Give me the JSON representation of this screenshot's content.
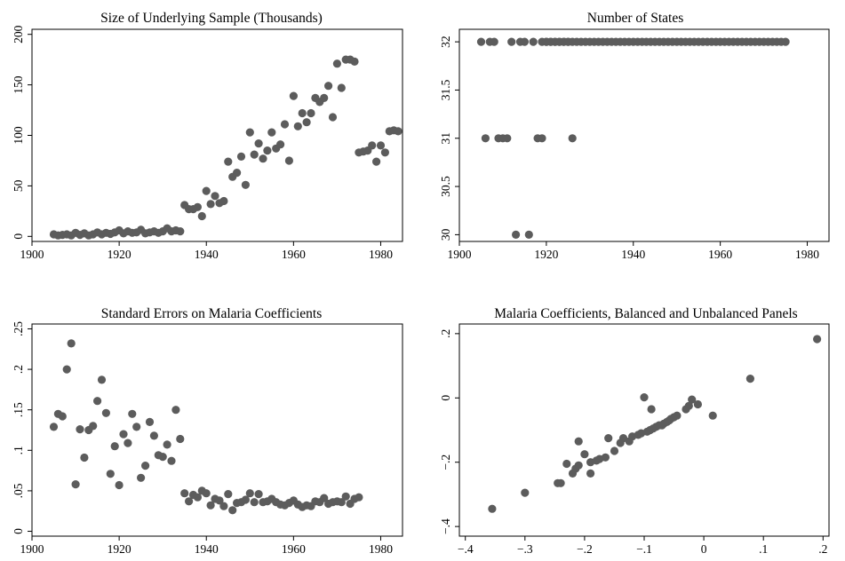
{
  "chart_data": [
    {
      "type": "scatter",
      "title": "Size of Underlying Sample (Thousands)",
      "xlim": [
        1900,
        1985
      ],
      "ylim": [
        -5,
        205
      ],
      "xticks": [
        1900,
        1920,
        1940,
        1960,
        1980
      ],
      "yticks": [
        0,
        50,
        100,
        150,
        200
      ],
      "ytick_labels": [
        "0",
        "50",
        "100",
        "150",
        "200"
      ],
      "ytick_rotated": true,
      "grid": false,
      "points": [
        [
          1905,
          2
        ],
        [
          1906,
          1
        ],
        [
          1907,
          1.5
        ],
        [
          1908,
          2
        ],
        [
          1909,
          1
        ],
        [
          1910,
          3.5
        ],
        [
          1911,
          1.5
        ],
        [
          1912,
          3
        ],
        [
          1913,
          1
        ],
        [
          1914,
          2
        ],
        [
          1915,
          4
        ],
        [
          1916,
          2
        ],
        [
          1917,
          3.5
        ],
        [
          1918,
          2.5
        ],
        [
          1919,
          4
        ],
        [
          1920,
          6
        ],
        [
          1921,
          3
        ],
        [
          1922,
          5
        ],
        [
          1923,
          3.5
        ],
        [
          1924,
          4
        ],
        [
          1925,
          6.5
        ],
        [
          1926,
          3
        ],
        [
          1927,
          4
        ],
        [
          1928,
          5
        ],
        [
          1929,
          3.5
        ],
        [
          1930,
          5
        ],
        [
          1931,
          8
        ],
        [
          1932,
          5
        ],
        [
          1933,
          6
        ],
        [
          1934,
          5
        ],
        [
          1935,
          31
        ],
        [
          1936,
          27
        ],
        [
          1937,
          27
        ],
        [
          1938,
          29
        ],
        [
          1939,
          20
        ],
        [
          1940,
          45
        ],
        [
          1941,
          32
        ],
        [
          1942,
          40
        ],
        [
          1943,
          33
        ],
        [
          1944,
          35
        ],
        [
          1945,
          74
        ],
        [
          1946,
          59
        ],
        [
          1947,
          63
        ],
        [
          1948,
          79
        ],
        [
          1949,
          51
        ],
        [
          1950,
          103
        ],
        [
          1951,
          81
        ],
        [
          1952,
          92
        ],
        [
          1953,
          77
        ],
        [
          1954,
          85
        ],
        [
          1955,
          103
        ],
        [
          1956,
          87
        ],
        [
          1957,
          91
        ],
        [
          1958,
          111
        ],
        [
          1959,
          75
        ],
        [
          1960,
          139
        ],
        [
          1961,
          109
        ],
        [
          1962,
          122
        ],
        [
          1963,
          113
        ],
        [
          1964,
          122
        ],
        [
          1965,
          137
        ],
        [
          1966,
          133
        ],
        [
          1967,
          137
        ],
        [
          1968,
          149
        ],
        [
          1969,
          118
        ],
        [
          1970,
          171
        ],
        [
          1971,
          147
        ],
        [
          1972,
          175
        ],
        [
          1973,
          175
        ],
        [
          1974,
          173
        ],
        [
          1975,
          83
        ],
        [
          1976,
          84
        ],
        [
          1977,
          85
        ],
        [
          1978,
          90
        ],
        [
          1979,
          74
        ],
        [
          1980,
          90
        ],
        [
          1981,
          83
        ],
        [
          1982,
          104
        ],
        [
          1983,
          105
        ],
        [
          1984,
          104
        ]
      ]
    },
    {
      "type": "scatter",
      "title": "Number of States",
      "xlim": [
        1900,
        1985
      ],
      "ylim": [
        29.93,
        32.13
      ],
      "xticks": [
        1900,
        1920,
        1940,
        1960,
        1980
      ],
      "yticks": [
        30,
        30.5,
        31,
        31.5,
        32
      ],
      "ytick_labels": [
        "30",
        "30.5",
        "31",
        "31.5",
        "32"
      ],
      "ytick_rotated": true,
      "grid": false,
      "x_range_at_32": [
        1919,
        1975
      ],
      "points": [
        [
          1905,
          32
        ],
        [
          1906,
          31
        ],
        [
          1907,
          32
        ],
        [
          1908,
          32
        ],
        [
          1909,
          31
        ],
        [
          1910,
          31
        ],
        [
          1911,
          31
        ],
        [
          1912,
          32
        ],
        [
          1913,
          30
        ],
        [
          1914,
          32
        ],
        [
          1915,
          32
        ],
        [
          1916,
          30
        ],
        [
          1917,
          32
        ],
        [
          1918,
          31
        ],
        [
          1919,
          31
        ],
        [
          1920,
          32
        ],
        [
          1921,
          32
        ],
        [
          1922,
          32
        ],
        [
          1923,
          32
        ],
        [
          1924,
          32
        ],
        [
          1925,
          32
        ],
        [
          1926,
          31
        ]
      ]
    },
    {
      "type": "scatter",
      "title": "Standard Errors on Malaria Coefficients",
      "xlim": [
        1900,
        1985
      ],
      "ylim": [
        -0.006,
        0.256
      ],
      "xticks": [
        1900,
        1920,
        1940,
        1960,
        1980
      ],
      "yticks": [
        0,
        0.05,
        0.1,
        0.15,
        0.2,
        0.25
      ],
      "ytick_labels": [
        "0",
        ".05",
        ".1",
        ".15",
        ".2",
        ".25"
      ],
      "ytick_rotated": true,
      "grid": false,
      "points": [
        [
          1905,
          0.129
        ],
        [
          1906,
          0.145
        ],
        [
          1907,
          0.142
        ],
        [
          1908,
          0.2
        ],
        [
          1909,
          0.232
        ],
        [
          1910,
          0.058
        ],
        [
          1911,
          0.126
        ],
        [
          1912,
          0.091
        ],
        [
          1913,
          0.125
        ],
        [
          1914,
          0.13
        ],
        [
          1915,
          0.161
        ],
        [
          1916,
          0.187
        ],
        [
          1917,
          0.146
        ],
        [
          1918,
          0.071
        ],
        [
          1919,
          0.105
        ],
        [
          1920,
          0.057
        ],
        [
          1921,
          0.12
        ],
        [
          1922,
          0.109
        ],
        [
          1923,
          0.145
        ],
        [
          1924,
          0.129
        ],
        [
          1925,
          0.066
        ],
        [
          1926,
          0.081
        ],
        [
          1927,
          0.135
        ],
        [
          1928,
          0.118
        ],
        [
          1929,
          0.094
        ],
        [
          1930,
          0.092
        ],
        [
          1931,
          0.107
        ],
        [
          1932,
          0.087
        ],
        [
          1933,
          0.15
        ],
        [
          1934,
          0.114
        ],
        [
          1935,
          0.047
        ],
        [
          1936,
          0.037
        ],
        [
          1937,
          0.045
        ],
        [
          1938,
          0.042
        ],
        [
          1939,
          0.05
        ],
        [
          1940,
          0.047
        ],
        [
          1941,
          0.032
        ],
        [
          1942,
          0.04
        ],
        [
          1943,
          0.038
        ],
        [
          1944,
          0.031
        ],
        [
          1945,
          0.046
        ],
        [
          1946,
          0.026
        ],
        [
          1947,
          0.035
        ],
        [
          1948,
          0.036
        ],
        [
          1949,
          0.039
        ],
        [
          1950,
          0.047
        ],
        [
          1951,
          0.036
        ],
        [
          1952,
          0.046
        ],
        [
          1953,
          0.036
        ],
        [
          1954,
          0.037
        ],
        [
          1955,
          0.04
        ],
        [
          1956,
          0.036
        ],
        [
          1957,
          0.033
        ],
        [
          1958,
          0.032
        ],
        [
          1959,
          0.035
        ],
        [
          1960,
          0.038
        ],
        [
          1961,
          0.033
        ],
        [
          1962,
          0.03
        ],
        [
          1963,
          0.032
        ],
        [
          1964,
          0.031
        ],
        [
          1965,
          0.037
        ],
        [
          1966,
          0.036
        ],
        [
          1967,
          0.041
        ],
        [
          1968,
          0.034
        ],
        [
          1969,
          0.036
        ],
        [
          1970,
          0.037
        ],
        [
          1971,
          0.036
        ],
        [
          1972,
          0.043
        ],
        [
          1973,
          0.034
        ],
        [
          1974,
          0.04
        ],
        [
          1975,
          0.042
        ]
      ]
    },
    {
      "type": "scatter",
      "title": "Malaria Coefficients, Balanced and Unbalanced Panels",
      "xlim": [
        -0.41,
        0.21
      ],
      "ylim": [
        -0.43,
        0.23
      ],
      "xticks": [
        -0.4,
        -0.3,
        -0.2,
        -0.1,
        0,
        0.1,
        0.2
      ],
      "xtick_labels": [
        "−.4",
        "−.3",
        "−.2",
        "−.1",
        "0",
        ".1",
        ".2"
      ],
      "yticks": [
        -0.4,
        -0.2,
        0,
        0.2
      ],
      "ytick_labels": [
        "−.4",
        "−.2",
        "0",
        ".2"
      ],
      "ytick_rotated": true,
      "grid": false,
      "points": [
        [
          -0.355,
          -0.345
        ],
        [
          -0.3,
          -0.295
        ],
        [
          -0.245,
          -0.265
        ],
        [
          -0.24,
          -0.265
        ],
        [
          -0.23,
          -0.205
        ],
        [
          -0.22,
          -0.235
        ],
        [
          -0.215,
          -0.22
        ],
        [
          -0.21,
          -0.21
        ],
        [
          -0.21,
          -0.135
        ],
        [
          -0.2,
          -0.175
        ],
        [
          -0.19,
          -0.235
        ],
        [
          -0.19,
          -0.2
        ],
        [
          -0.18,
          -0.195
        ],
        [
          -0.175,
          -0.19
        ],
        [
          -0.165,
          -0.185
        ],
        [
          -0.16,
          -0.125
        ],
        [
          -0.15,
          -0.165
        ],
        [
          -0.14,
          -0.14
        ],
        [
          -0.135,
          -0.125
        ],
        [
          -0.125,
          -0.135
        ],
        [
          -0.12,
          -0.12
        ],
        [
          -0.11,
          -0.115
        ],
        [
          -0.105,
          -0.11
        ],
        [
          -0.1,
          0.002
        ],
        [
          -0.095,
          -0.105
        ],
        [
          -0.09,
          -0.1
        ],
        [
          -0.088,
          -0.035
        ],
        [
          -0.085,
          -0.095
        ],
        [
          -0.08,
          -0.09
        ],
        [
          -0.075,
          -0.085
        ],
        [
          -0.07,
          -0.085
        ],
        [
          -0.067,
          -0.08
        ],
        [
          -0.062,
          -0.075
        ],
        [
          -0.058,
          -0.07
        ],
        [
          -0.055,
          -0.065
        ],
        [
          -0.05,
          -0.06
        ],
        [
          -0.045,
          -0.055
        ],
        [
          -0.03,
          -0.035
        ],
        [
          -0.025,
          -0.025
        ],
        [
          -0.02,
          -0.005
        ],
        [
          -0.01,
          -0.02
        ],
        [
          0.015,
          -0.055
        ],
        [
          0.078,
          0.06
        ],
        [
          0.19,
          0.183
        ]
      ]
    }
  ]
}
